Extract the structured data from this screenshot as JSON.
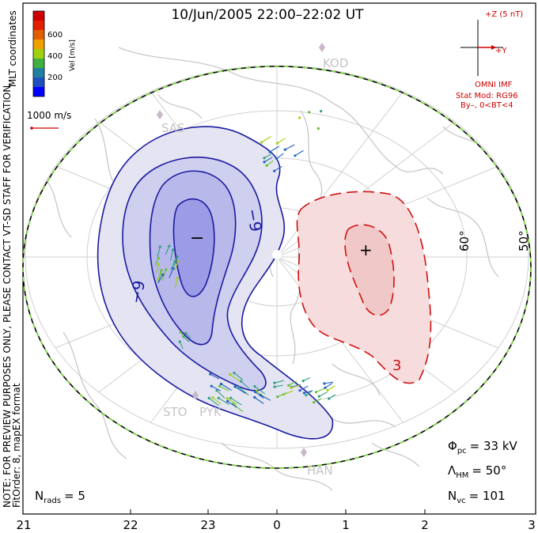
{
  "title": "10/Jun/2005 22:00–22:02 UT",
  "side_note_1": "NOTE: FOR PREVIEW PURPOSES ONLY, PLEASE CONTACT VT-SD STAFF FOR VERIFICATION.",
  "side_note_2": "FitOrder: 8, mapEX format",
  "side_note_3": "MLT coordinates",
  "velocity_scale": {
    "label": "Vel [m/s]",
    "ticks": [
      "600",
      "400",
      "200"
    ],
    "colors": [
      "#0000ff",
      "#2060c0",
      "#30a080",
      "#60c030",
      "#a0d010",
      "#f0a000",
      "#e06000",
      "#d02000",
      "#c00000"
    ]
  },
  "vector_scale_label": "1000 m/s",
  "imf": {
    "title": "+Z (5 nT)",
    "y_label": "+Y",
    "source": "OMNI IMF",
    "model": "Stat Mod: RG96",
    "conditions": "By–, 0<BT<4"
  },
  "contours": {
    "negative_label": "−9",
    "negative_label_2": "−9",
    "positive_label": "3",
    "neg_min_symbol": "−",
    "pos_max_symbol": "+"
  },
  "latitude_labels": [
    "60°",
    "50°"
  ],
  "stations": [
    {
      "code": "KOD"
    },
    {
      "code": "SAS"
    },
    {
      "code": "STO"
    },
    {
      "code": "PYK"
    },
    {
      "code": "HAN"
    }
  ],
  "stats": {
    "phi_symbol": "Φ",
    "phi_sub": "pc",
    "phi_value": "= 33 kV",
    "lambda_symbol": "Λ",
    "lambda_sub": "HM",
    "lambda_value": "= 50°",
    "nvc_symbol": "N",
    "nvc_sub": "vc",
    "nvc_value": "= 101",
    "nrads_symbol": "N",
    "nrads_sub": "rads",
    "nrads_value": "= 5"
  },
  "mlt_ticks": [
    "21",
    "22",
    "23",
    "0",
    "1",
    "2",
    "3"
  ]
}
